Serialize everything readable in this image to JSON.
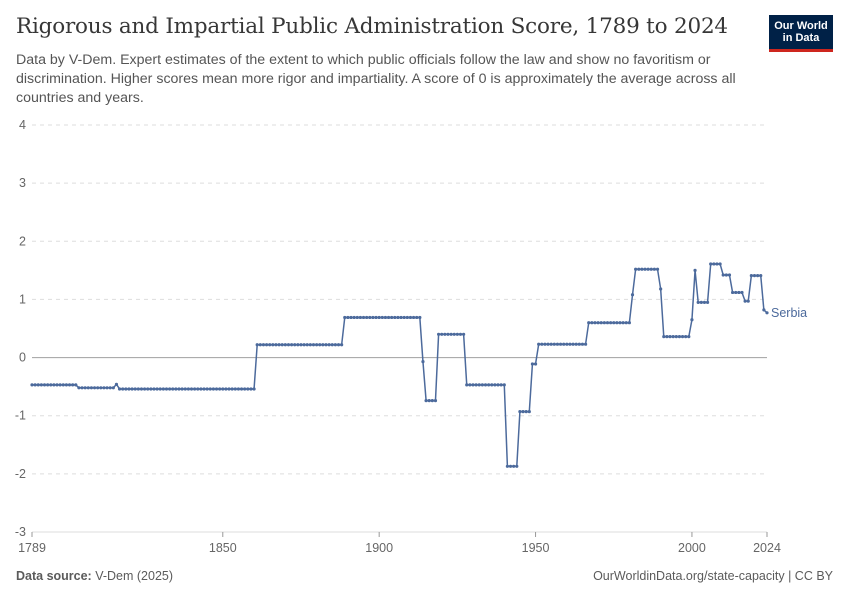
{
  "header": {
    "title": "Rigorous and Impartial Public Administration Score, 1789 to 2024",
    "subtitle": "Data by V-Dem. Expert estimates of the extent to which public officials follow the law and show no favoritism or discrimination. Higher scores mean more rigor and impartiality. A score of 0 is approximately the average across all countries and years.",
    "logo_line1": "Our World",
    "logo_line2": "in Data"
  },
  "footer": {
    "source_label": "Data source:",
    "source_value": "V-Dem (2025)",
    "url": "OurWorldinData.org/state-capacity | CC BY"
  },
  "colors": {
    "series": "#4c6a9c",
    "grid": "#dddddd",
    "zero_line": "#a0a0a0",
    "logo_bg": "#002147",
    "logo_accent": "#ce261e"
  },
  "chart_data": {
    "type": "line",
    "xlim": [
      1789,
      2024
    ],
    "ylim": [
      -3,
      4
    ],
    "x_ticks": [
      "1789",
      "1850",
      "1900",
      "1950",
      "2000",
      "2024"
    ],
    "y_ticks": [
      "-3",
      "-2",
      "-1",
      "0",
      "1",
      "2",
      "3",
      "4"
    ],
    "grid": "horizontal-dashed",
    "series": [
      {
        "name": "Serbia",
        "color": "#4c6a9c",
        "points": [
          [
            1789,
            -0.47
          ],
          [
            1803,
            -0.47
          ],
          [
            1804,
            -0.52
          ],
          [
            1815,
            -0.52
          ],
          [
            1816,
            -0.46
          ],
          [
            1817,
            -0.54
          ],
          [
            1860,
            -0.54
          ],
          [
            1861,
            0.22
          ],
          [
            1888,
            0.22
          ],
          [
            1889,
            0.69
          ],
          [
            1913,
            0.69
          ],
          [
            1914,
            -0.07
          ],
          [
            1915,
            -0.74
          ],
          [
            1918,
            -0.74
          ],
          [
            1919,
            0.4
          ],
          [
            1927,
            0.4
          ],
          [
            1928,
            -0.47
          ],
          [
            1940,
            -0.47
          ],
          [
            1941,
            -1.87
          ],
          [
            1944,
            -1.87
          ],
          [
            1945,
            -0.93
          ],
          [
            1948,
            -0.93
          ],
          [
            1949,
            -0.11
          ],
          [
            1950,
            -0.11
          ],
          [
            1951,
            0.23
          ],
          [
            1966,
            0.23
          ],
          [
            1967,
            0.6
          ],
          [
            1980,
            0.6
          ],
          [
            1981,
            1.08
          ],
          [
            1982,
            1.52
          ],
          [
            1989,
            1.52
          ],
          [
            1990,
            1.18
          ],
          [
            1991,
            0.36
          ],
          [
            1999,
            0.36
          ],
          [
            2000,
            0.65
          ],
          [
            2001,
            1.5
          ],
          [
            2002,
            0.95
          ],
          [
            2005,
            0.95
          ],
          [
            2006,
            1.61
          ],
          [
            2009,
            1.61
          ],
          [
            2010,
            1.42
          ],
          [
            2012,
            1.42
          ],
          [
            2013,
            1.12
          ],
          [
            2016,
            1.12
          ],
          [
            2017,
            0.97
          ],
          [
            2018,
            0.97
          ],
          [
            2019,
            1.41
          ],
          [
            2022,
            1.41
          ],
          [
            2023,
            0.82
          ],
          [
            2024,
            0.77
          ]
        ]
      }
    ]
  }
}
